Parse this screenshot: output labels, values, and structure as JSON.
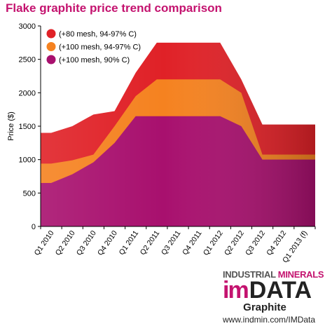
{
  "chart_data": {
    "type": "area",
    "title": "Flake graphite price trend comparison",
    "ylabel": "Price ($)",
    "xlabel": "",
    "ylim": [
      0,
      3000
    ],
    "yticks": [
      0,
      500,
      1000,
      1500,
      2000,
      2500,
      3000
    ],
    "legend_position": "top-left",
    "grid": false,
    "stacked": false,
    "categories": [
      "Q1 2010",
      "Q2 2010",
      "Q3 2010",
      "Q4 2010",
      "Q1 2011",
      "Q2 2011",
      "Q3 2011",
      "Q4 2011",
      "Q1 2012",
      "Q2 2012",
      "Q3 2012",
      "Q4 2012",
      "Q1 2013 (f)"
    ],
    "series": [
      {
        "name": "(+80 mesh, 94-97% C)",
        "color": "#e02127",
        "values": [
          1400,
          1500,
          1675,
          1725,
          2300,
          2750,
          2750,
          2750,
          2750,
          2200,
          1525,
          1525,
          1525
        ]
      },
      {
        "name": "(+100 mesh, 94-97% C)",
        "color": "#f58220",
        "values": [
          940,
          990,
          1075,
          1500,
          1950,
          2200,
          2200,
          2200,
          2200,
          2000,
          1075,
          1075,
          1075
        ]
      },
      {
        "name": "(+100 mesh, 90% C)",
        "color": "#a8106e",
        "values": [
          650,
          780,
          960,
          1250,
          1650,
          1650,
          1650,
          1650,
          1650,
          1500,
          1000,
          1000,
          1000
        ]
      }
    ]
  },
  "brand": {
    "line1_part1": "INDUSTRIAL ",
    "line1_part2": "MINERALS",
    "logo_im": "im",
    "logo_data": "DATA",
    "subtitle": "Graphite",
    "url": "www.indmin.com/IMData"
  }
}
